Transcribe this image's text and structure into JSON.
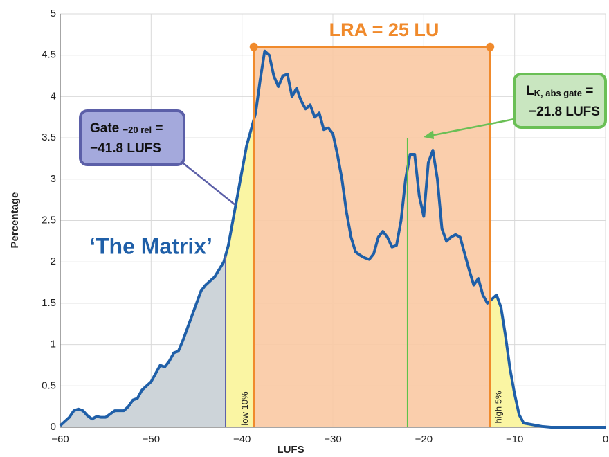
{
  "chart_data": {
    "type": "line",
    "x_label": "LUFS",
    "y_label": "Percentage",
    "xlim": [
      -60,
      0
    ],
    "ylim": [
      0,
      5
    ],
    "xticks": [
      {
        "value": -60,
        "label": "−60"
      },
      {
        "value": -50,
        "label": "−50"
      },
      {
        "value": -40,
        "label": "−40"
      },
      {
        "value": -30,
        "label": "−30"
      },
      {
        "value": -20,
        "label": "−20"
      },
      {
        "value": -10,
        "label": "−10"
      },
      0
    ],
    "yticks": [
      0,
      0.5,
      1,
      1.5,
      2,
      2.5,
      3,
      3.5,
      4,
      4.5,
      5
    ],
    "grid": true,
    "color": "#1f5fa8",
    "x": [
      -60,
      -59,
      -58.5,
      -58,
      -57.5,
      -57,
      -56.5,
      -56,
      -55.5,
      -55,
      -54,
      -53,
      -52.5,
      -52,
      -51.5,
      -51,
      -50,
      -49.5,
      -49,
      -48.5,
      -48,
      -47.5,
      -47,
      -46.5,
      -46,
      -45.5,
      -45,
      -44.5,
      -44,
      -43,
      -42,
      -41.5,
      -41,
      -40.5,
      -40,
      -39.5,
      -39,
      -38.5,
      -38,
      -37.5,
      -37,
      -36.5,
      -36,
      -35.5,
      -35,
      -34.5,
      -34,
      -33.5,
      -33,
      -32.5,
      -32,
      -31.5,
      -31,
      -30.5,
      -30,
      -29.5,
      -29,
      -28.5,
      -28,
      -27.5,
      -27,
      -26.5,
      -26,
      -25.5,
      -25,
      -24.5,
      -24,
      -23.5,
      -23,
      -22.5,
      -22,
      -21.5,
      -21,
      -20.5,
      -20,
      -19.5,
      -19,
      -18.5,
      -18,
      -17.5,
      -17,
      -16.5,
      -16,
      -15.5,
      -15,
      -14.5,
      -14,
      -13.5,
      -13,
      -12.5,
      -12,
      -11.5,
      -11,
      -10.5,
      -10,
      -9.5,
      -9,
      -8,
      -7,
      -6,
      0
    ],
    "values": [
      0.02,
      0.12,
      0.2,
      0.22,
      0.2,
      0.14,
      0.1,
      0.13,
      0.12,
      0.12,
      0.2,
      0.2,
      0.25,
      0.33,
      0.35,
      0.45,
      0.55,
      0.65,
      0.75,
      0.73,
      0.8,
      0.9,
      0.92,
      1.05,
      1.2,
      1.35,
      1.5,
      1.65,
      1.72,
      1.82,
      2.0,
      2.2,
      2.5,
      2.8,
      3.1,
      3.4,
      3.6,
      3.8,
      4.2,
      4.55,
      4.5,
      4.25,
      4.12,
      4.25,
      4.27,
      4.0,
      4.1,
      3.95,
      3.85,
      3.9,
      3.75,
      3.8,
      3.6,
      3.62,
      3.55,
      3.3,
      3.0,
      2.6,
      2.3,
      2.12,
      2.08,
      2.05,
      2.03,
      2.1,
      2.3,
      2.37,
      2.3,
      2.18,
      2.2,
      2.5,
      3.0,
      3.3,
      3.3,
      2.8,
      2.55,
      3.2,
      3.35,
      3.0,
      2.4,
      2.25,
      2.3,
      2.33,
      2.3,
      2.1,
      1.9,
      1.72,
      1.8,
      1.6,
      1.5,
      1.55,
      1.6,
      1.45,
      1.1,
      0.7,
      0.4,
      0.15,
      0.05,
      0.03,
      0.01,
      0,
      0
    ],
    "gate_rel": -41.8,
    "low_edge": -38.7,
    "high_edge": -12.7,
    "k_gate": -21.8,
    "k_gate_level": 3.5,
    "lra_level": 4.6,
    "lra_label": "LRA = 25 LU",
    "low_label": "low 10%",
    "high_label": "high 5%",
    "film_label": "‘The Matrix’",
    "gate_box": {
      "word": "Gate ",
      "sub": "−20 rel",
      "eq": " =",
      "value": "−41.8 LUFS"
    },
    "k_box": {
      "word": "L",
      "sub": "K, abs gate",
      "eq": " =",
      "value": "−21.8 LUFS"
    }
  }
}
